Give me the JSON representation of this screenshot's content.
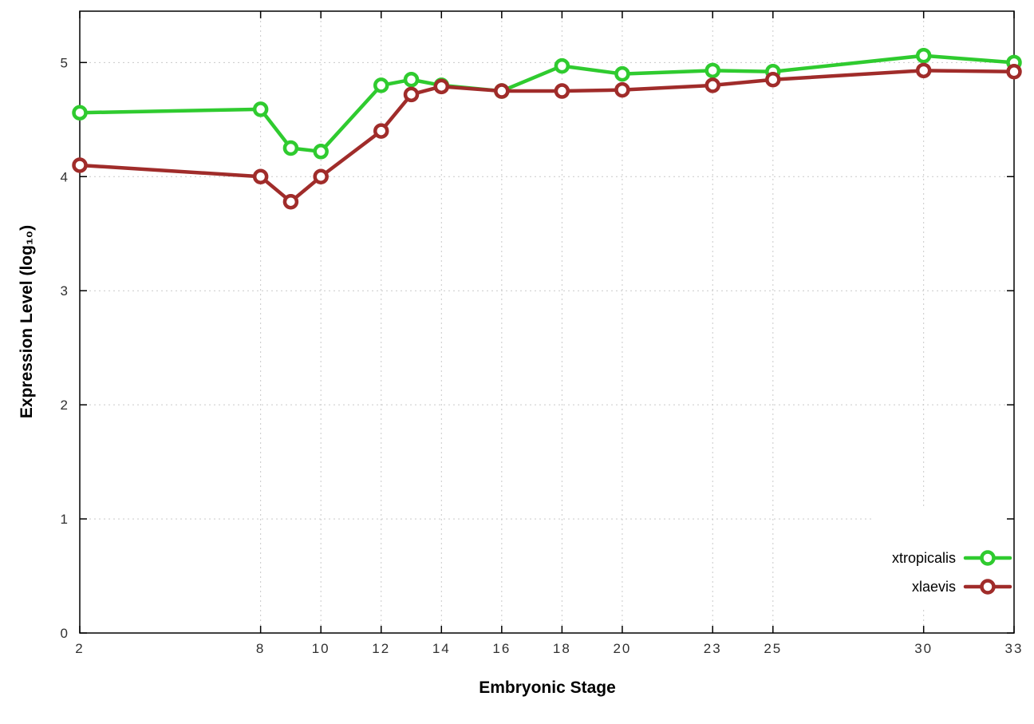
{
  "chart_data": {
    "type": "line",
    "title": "",
    "xlabel": "Embryonic Stage",
    "ylabel": "Expression Level (log₁₀)",
    "x": [
      2,
      8,
      9,
      10,
      12,
      13,
      14,
      16,
      18,
      20,
      23,
      25,
      30,
      33
    ],
    "x_ticks": [
      2,
      8,
      10,
      12,
      14,
      16,
      18,
      20,
      23,
      25,
      30,
      33
    ],
    "y_ticks": [
      0,
      1,
      2,
      3,
      4,
      5
    ],
    "xlim": [
      2,
      33
    ],
    "ylim": [
      0,
      5.45
    ],
    "grid": true,
    "marker": "open-circle",
    "legend_position": "inside-bottom-right",
    "series": [
      {
        "name": "xtropicalis",
        "color": "#2fcb2f",
        "values": [
          4.56,
          4.59,
          4.25,
          4.22,
          4.8,
          4.85,
          4.8,
          4.75,
          4.97,
          4.9,
          4.93,
          4.92,
          5.06,
          5.0
        ]
      },
      {
        "name": "xlaevis",
        "color": "#a02c2a",
        "values": [
          4.1,
          4.0,
          3.78,
          4.0,
          4.4,
          4.72,
          4.79,
          4.75,
          4.75,
          4.76,
          4.8,
          4.85,
          4.93,
          4.92
        ]
      }
    ]
  }
}
